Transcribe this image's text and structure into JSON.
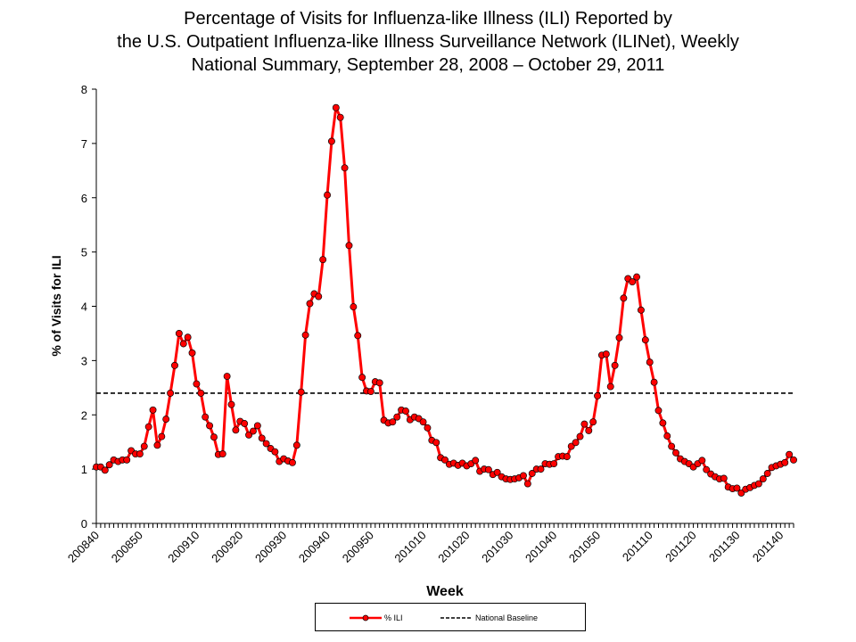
{
  "chart_data": {
    "type": "line",
    "title_lines": [
      "Percentage of Visits for Influenza-like Illness (ILI) Reported by",
      "the U.S. Outpatient Influenza-like Illness Surveillance Network (ILINet), Weekly",
      "National Summary, September 28, 2008 – October 29, 2011"
    ],
    "xlabel": "Week",
    "ylabel": "% of Visits for ILI",
    "ylim": [
      0,
      8
    ],
    "yticks": [
      0,
      1,
      2,
      3,
      4,
      5,
      6,
      7,
      8
    ],
    "xtick_labels": [
      "200840",
      "200850",
      "200910",
      "200920",
      "200930",
      "200940",
      "200950",
      "201010",
      "201020",
      "201030",
      "201040",
      "201050",
      "201110",
      "201120",
      "201130",
      "201140"
    ],
    "grid": false,
    "legend_position": "bottom",
    "weeks": [
      200840,
      200841,
      200842,
      200843,
      200844,
      200845,
      200846,
      200847,
      200848,
      200849,
      200850,
      200851,
      200852,
      200853,
      200901,
      200902,
      200903,
      200904,
      200905,
      200906,
      200907,
      200908,
      200909,
      200910,
      200911,
      200912,
      200913,
      200914,
      200915,
      200916,
      200917,
      200918,
      200919,
      200920,
      200921,
      200922,
      200923,
      200924,
      200925,
      200926,
      200927,
      200928,
      200929,
      200930,
      200931,
      200932,
      200933,
      200934,
      200935,
      200936,
      200937,
      200938,
      200939,
      200940,
      200941,
      200942,
      200943,
      200944,
      200945,
      200946,
      200947,
      200948,
      200949,
      200950,
      200951,
      200952,
      201001,
      201002,
      201003,
      201004,
      201005,
      201006,
      201007,
      201008,
      201009,
      201010,
      201011,
      201012,
      201013,
      201014,
      201015,
      201016,
      201017,
      201018,
      201019,
      201020,
      201021,
      201022,
      201023,
      201024,
      201025,
      201026,
      201027,
      201028,
      201029,
      201030,
      201031,
      201032,
      201033,
      201034,
      201035,
      201036,
      201037,
      201038,
      201039,
      201040,
      201041,
      201042,
      201043,
      201044,
      201045,
      201046,
      201047,
      201048,
      201049,
      201050,
      201051,
      201052,
      201101,
      201102,
      201103,
      201104,
      201105,
      201106,
      201107,
      201108,
      201109,
      201110,
      201111,
      201112,
      201113,
      201114,
      201115,
      201116,
      201117,
      201118,
      201119,
      201120,
      201121,
      201122,
      201123,
      201124,
      201125,
      201126,
      201127,
      201128,
      201129,
      201130,
      201131,
      201132,
      201133,
      201134,
      201135,
      201136,
      201137,
      201138,
      201139,
      201140,
      201141,
      201142,
      201143
    ],
    "series": [
      {
        "name": "% ILI",
        "color": "#ff0000",
        "marker": "circle",
        "values": [
          1.04,
          1.04,
          0.98,
          1.08,
          1.17,
          1.14,
          1.17,
          1.17,
          1.34,
          1.28,
          1.28,
          1.42,
          1.78,
          2.09,
          1.44,
          1.6,
          1.92,
          2.4,
          2.91,
          3.5,
          3.31,
          3.43,
          3.14,
          2.57,
          2.4,
          1.96,
          1.8,
          1.59,
          1.27,
          1.28,
          2.71,
          2.19,
          1.72,
          1.88,
          1.84,
          1.63,
          1.7,
          1.8,
          1.57,
          1.47,
          1.38,
          1.32,
          1.14,
          1.19,
          1.15,
          1.12,
          1.44,
          2.42,
          3.47,
          4.05,
          4.23,
          4.18,
          4.86,
          6.05,
          7.04,
          7.66,
          7.48,
          6.55,
          5.12,
          3.99,
          3.46,
          2.69,
          2.44,
          2.43,
          2.61,
          2.59,
          1.9,
          1.85,
          1.87,
          1.96,
          2.09,
          2.07,
          1.91,
          1.96,
          1.93,
          1.87,
          1.76,
          1.53,
          1.49,
          1.21,
          1.17,
          1.09,
          1.11,
          1.07,
          1.11,
          1.06,
          1.1,
          1.16,
          0.96,
          1.0,
          0.99,
          0.9,
          0.94,
          0.86,
          0.82,
          0.81,
          0.82,
          0.84,
          0.88,
          0.73,
          0.92,
          1.0,
          1.0,
          1.1,
          1.09,
          1.1,
          1.23,
          1.24,
          1.23,
          1.42,
          1.49,
          1.6,
          1.83,
          1.71,
          1.87,
          2.35,
          3.1,
          3.12,
          2.52,
          2.91,
          3.42,
          4.15,
          4.51,
          4.45,
          4.54,
          3.93,
          3.38,
          2.97,
          2.6,
          2.08,
          1.85,
          1.61,
          1.42,
          1.3,
          1.19,
          1.14,
          1.1,
          1.04,
          1.1,
          1.16,
          0.99,
          0.91,
          0.86,
          0.82,
          0.83,
          0.67,
          0.64,
          0.65,
          0.56,
          0.63,
          0.66,
          0.7,
          0.73,
          0.82,
          0.92,
          1.03,
          1.06,
          1.09,
          1.12,
          1.27,
          1.17
        ]
      },
      {
        "name": "National Baseline",
        "color": "#000000",
        "style": "dashed",
        "value": 2.4
      }
    ]
  }
}
